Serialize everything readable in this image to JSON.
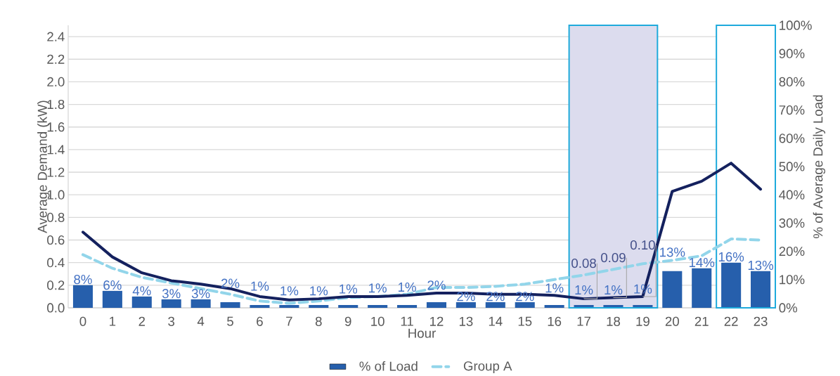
{
  "chart_data": {
    "type": "bar",
    "xlabel": "Hour",
    "ylabel": "Average Demand (kW)",
    "y2label": "% of Average Daily Load",
    "categories": [
      "0",
      "1",
      "2",
      "3",
      "4",
      "5",
      "6",
      "7",
      "8",
      "9",
      "10",
      "11",
      "12",
      "13",
      "14",
      "15",
      "16",
      "17",
      "18",
      "19",
      "20",
      "21",
      "22",
      "23"
    ],
    "series": [
      {
        "name": "% of Load",
        "axis": "y2",
        "color": "#265fac",
        "values": [
          8,
          6,
          4,
          3,
          3,
          2,
          1,
          1,
          1,
          1,
          1,
          1,
          2,
          2,
          2,
          2,
          1,
          1,
          1,
          1,
          13,
          14,
          16,
          13
        ],
        "value_labels": [
          "8%",
          "6%",
          "4%",
          "3%",
          "3%",
          "2%",
          "1%",
          "1%",
          "1%",
          "1%",
          "1%",
          "1%",
          "2%",
          "2%",
          "2%",
          "2%",
          "1%",
          "1%",
          "1%",
          "1%",
          "13%",
          "14%",
          "16%",
          "13%"
        ]
      },
      {
        "name": "Group A",
        "type": "line",
        "line_style": "dashed",
        "color": "#92d5ea",
        "values": [
          0.47,
          0.35,
          0.27,
          0.22,
          0.17,
          0.12,
          0.06,
          0.04,
          0.06,
          0.09,
          0.1,
          0.12,
          0.18,
          0.18,
          0.19,
          0.21,
          0.25,
          0.29,
          0.34,
          0.39,
          0.42,
          0.46,
          0.61,
          0.6
        ]
      },
      {
        "type": "line",
        "line_style": "solid",
        "color": "#14215e",
        "values": [
          0.67,
          0.45,
          0.31,
          0.24,
          0.21,
          0.17,
          0.1,
          0.07,
          0.08,
          0.1,
          0.1,
          0.11,
          0.13,
          0.13,
          0.12,
          0.12,
          0.11,
          0.08,
          0.09,
          0.1,
          1.03,
          1.12,
          1.28,
          1.05
        ]
      }
    ],
    "ylim": [
      0,
      2.5
    ],
    "yticks": [
      {
        "value": 0,
        "label": "0.0"
      },
      0.2,
      0.4,
      0.6,
      0.8,
      {
        "value": 1,
        "label": "1.0"
      },
      1.2,
      1.4,
      1.6,
      1.8,
      {
        "value": 2,
        "label": "2.0"
      },
      2.2,
      2.4
    ],
    "y2lim": [
      0,
      100
    ],
    "y2ticks": [
      {
        "value": 0,
        "label": "0%"
      },
      {
        "value": 10,
        "label": "10%"
      },
      {
        "value": 20,
        "label": "20%"
      },
      {
        "value": 30,
        "label": "30%"
      },
      {
        "value": 40,
        "label": "40%"
      },
      {
        "value": 50,
        "label": "50%"
      },
      {
        "value": 60,
        "label": "60%"
      },
      {
        "value": 70,
        "label": "70%"
      },
      {
        "value": 80,
        "label": "80%"
      },
      {
        "value": 90,
        "label": "90%"
      },
      {
        "value": 100,
        "label": "100%"
      }
    ],
    "grid": "y",
    "legend": "bottom",
    "marker": "none",
    "bands": [
      {
        "axis": "x",
        "from": "17",
        "to": "19",
        "color": "#dcdcee"
      },
      {
        "axis": "x",
        "from": "22",
        "to": "23",
        "color": "#ffffff"
      }
    ],
    "annotations": [
      {
        "text": "0.08",
        "x": "17",
        "y": 0.08
      },
      {
        "text": "0.09",
        "x": "18",
        "y": 0.09
      },
      {
        "text": "0.10",
        "x": "19",
        "y": 0.1
      }
    ]
  }
}
